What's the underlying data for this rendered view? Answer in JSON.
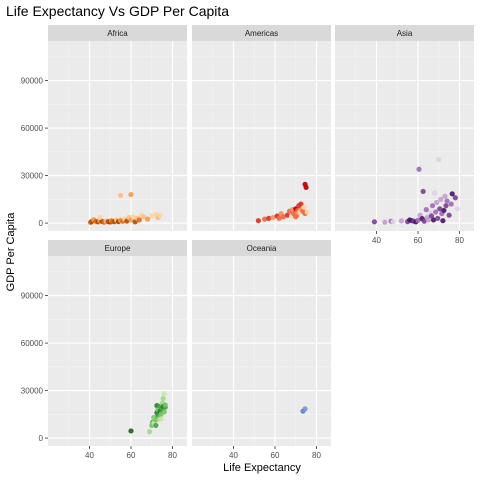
{
  "chart_data": {
    "type": "scatter",
    "title": "Life Expectancy Vs GDP Per Capita",
    "xlabel": "Life Expectancy",
    "ylabel": "GDP Per Capita",
    "xlim": [
      20,
      87
    ],
    "ylim": [
      -5000,
      115000
    ],
    "x_ticks": [
      40,
      60,
      80
    ],
    "y_ticks": [
      0,
      30000,
      60000,
      90000
    ],
    "y_tick_labels": [
      "0",
      "30000",
      "60000",
      "90000"
    ],
    "grid": true,
    "legend": "none",
    "facets": [
      {
        "name": "Africa",
        "colors": [
          "#fdd49e",
          "#fdbb84",
          "#f49b45",
          "#e06a15",
          "#b04a04",
          "#a04000"
        ],
        "points": [
          [
            40.5,
            500,
            3
          ],
          [
            41,
            900,
            4
          ],
          [
            42,
            2200,
            2
          ],
          [
            43,
            1200,
            3
          ],
          [
            44,
            800,
            4
          ],
          [
            45,
            1500,
            2
          ],
          [
            46,
            1100,
            5
          ],
          [
            47,
            600,
            3
          ],
          [
            48,
            1300,
            1
          ],
          [
            49,
            900,
            4
          ],
          [
            50,
            700,
            5
          ],
          [
            50.5,
            1600,
            2
          ],
          [
            51,
            1200,
            3
          ],
          [
            52,
            900,
            4
          ],
          [
            53,
            2000,
            1
          ],
          [
            54,
            1000,
            5
          ],
          [
            55,
            1800,
            2
          ],
          [
            56,
            1200,
            3
          ],
          [
            57,
            2500,
            0
          ],
          [
            58,
            1300,
            4
          ],
          [
            59,
            3500,
            1
          ],
          [
            60,
            2000,
            2
          ],
          [
            60,
            18000,
            2
          ],
          [
            61,
            4000,
            0
          ],
          [
            62,
            800,
            4
          ],
          [
            63,
            3000,
            1
          ],
          [
            64,
            2000,
            3
          ],
          [
            55,
            17500,
            1
          ],
          [
            65,
            5000,
            0
          ],
          [
            66,
            4000,
            1
          ],
          [
            70,
            4500,
            0
          ],
          [
            72,
            5500,
            0
          ],
          [
            73,
            3500,
            1
          ],
          [
            74,
            4800,
            0
          ],
          [
            68,
            2500,
            2
          ],
          [
            45,
            3500,
            0
          ]
        ]
      },
      {
        "name": "Americas",
        "colors": [
          "#fdd49e",
          "#fc8d59",
          "#ef6548",
          "#d7301f",
          "#b30000"
        ],
        "points": [
          [
            52,
            1500,
            3
          ],
          [
            55,
            2500,
            2
          ],
          [
            57,
            3000,
            3
          ],
          [
            59,
            3500,
            1
          ],
          [
            61,
            4500,
            3
          ],
          [
            62,
            3000,
            2
          ],
          [
            63,
            6000,
            1
          ],
          [
            64,
            4000,
            2
          ],
          [
            66,
            5000,
            3
          ],
          [
            67,
            7500,
            2
          ],
          [
            68,
            4500,
            0
          ],
          [
            68.5,
            8500,
            1
          ],
          [
            69,
            6000,
            2
          ],
          [
            70,
            9000,
            4
          ],
          [
            70.5,
            5000,
            1
          ],
          [
            71,
            8000,
            2
          ],
          [
            71.5,
            11000,
            3
          ],
          [
            72,
            7000,
            0
          ],
          [
            72.5,
            12000,
            3
          ],
          [
            73,
            8500,
            1
          ],
          [
            73.5,
            7500,
            2
          ],
          [
            74,
            10000,
            0
          ],
          [
            74.5,
            6000,
            2
          ],
          [
            74.5,
            24500,
            4
          ],
          [
            75,
            22500,
            4
          ],
          [
            75.5,
            7000,
            0
          ],
          [
            70,
            4000,
            2
          ]
        ]
      },
      {
        "name": "Asia",
        "colors": [
          "#e1d0e8",
          "#c29fcd",
          "#9e6ab3",
          "#7a3f92",
          "#4a1268"
        ],
        "points": [
          [
            39,
            800,
            3
          ],
          [
            44,
            600,
            1
          ],
          [
            47,
            1200,
            2
          ],
          [
            48,
            900,
            0
          ],
          [
            52,
            1400,
            1
          ],
          [
            55,
            900,
            3
          ],
          [
            56,
            2000,
            4
          ],
          [
            57,
            1500,
            4
          ],
          [
            58,
            1200,
            3
          ],
          [
            59,
            800,
            4
          ],
          [
            60,
            1800,
            2
          ],
          [
            60.5,
            34000,
            2
          ],
          [
            61,
            5000,
            1
          ],
          [
            62,
            2800,
            4
          ],
          [
            62.5,
            20000,
            3
          ],
          [
            63,
            1200,
            3
          ],
          [
            64,
            8500,
            2
          ],
          [
            64.5,
            3500,
            1
          ],
          [
            65,
            2000,
            1
          ],
          [
            66,
            6500,
            0
          ],
          [
            66.5,
            4500,
            3
          ],
          [
            67,
            11000,
            2
          ],
          [
            67.5,
            2000,
            4
          ],
          [
            68,
            19000,
            0
          ],
          [
            68.5,
            7000,
            2
          ],
          [
            69,
            13000,
            1
          ],
          [
            69.5,
            3000,
            3
          ],
          [
            70,
            40000,
            0
          ],
          [
            70.5,
            9000,
            3
          ],
          [
            71,
            15000,
            1
          ],
          [
            71.5,
            6000,
            2
          ],
          [
            72,
            1500,
            4
          ],
          [
            72.5,
            8000,
            4
          ],
          [
            73,
            17000,
            1
          ],
          [
            73.5,
            11000,
            3
          ],
          [
            74,
            14000,
            2
          ],
          [
            75,
            5000,
            3
          ],
          [
            76,
            12000,
            2
          ],
          [
            76.5,
            18500,
            4
          ],
          [
            78,
            16000,
            3
          ],
          [
            79,
            9000,
            0
          ]
        ]
      },
      {
        "name": "Europe",
        "colors": [
          "#c7e9a4",
          "#a1d98a",
          "#74c464",
          "#41a340",
          "#2a7d2a",
          "#1e5e1e"
        ],
        "points": [
          [
            60,
            4500,
            5
          ],
          [
            69,
            4000,
            1
          ],
          [
            70,
            8000,
            2
          ],
          [
            70.5,
            10000,
            3
          ],
          [
            71,
            9500,
            0
          ],
          [
            71,
            13000,
            2
          ],
          [
            71.5,
            12000,
            1
          ],
          [
            72,
            8000,
            3
          ],
          [
            72,
            11500,
            2
          ],
          [
            72.5,
            16000,
            4
          ],
          [
            72.5,
            20500,
            4
          ],
          [
            73,
            14000,
            3
          ],
          [
            73,
            18000,
            2
          ],
          [
            73.5,
            12000,
            1
          ],
          [
            74,
            17000,
            4
          ],
          [
            74,
            20000,
            3
          ],
          [
            74.5,
            15000,
            2
          ],
          [
            75,
            18500,
            3
          ],
          [
            75,
            22000,
            1
          ],
          [
            75.5,
            20000,
            4
          ],
          [
            75.5,
            25000,
            1
          ],
          [
            76,
            28000,
            0
          ],
          [
            76,
            16500,
            2
          ],
          [
            76.5,
            19500,
            3
          ],
          [
            76.5,
            21000,
            2
          ],
          [
            74.5,
            12000,
            0
          ]
        ]
      },
      {
        "name": "Oceania",
        "colors": [
          "#5b7fc4",
          "#7796d1"
        ],
        "points": [
          [
            73.5,
            17000,
            0
          ],
          [
            74.5,
            18500,
            1
          ]
        ]
      }
    ]
  }
}
